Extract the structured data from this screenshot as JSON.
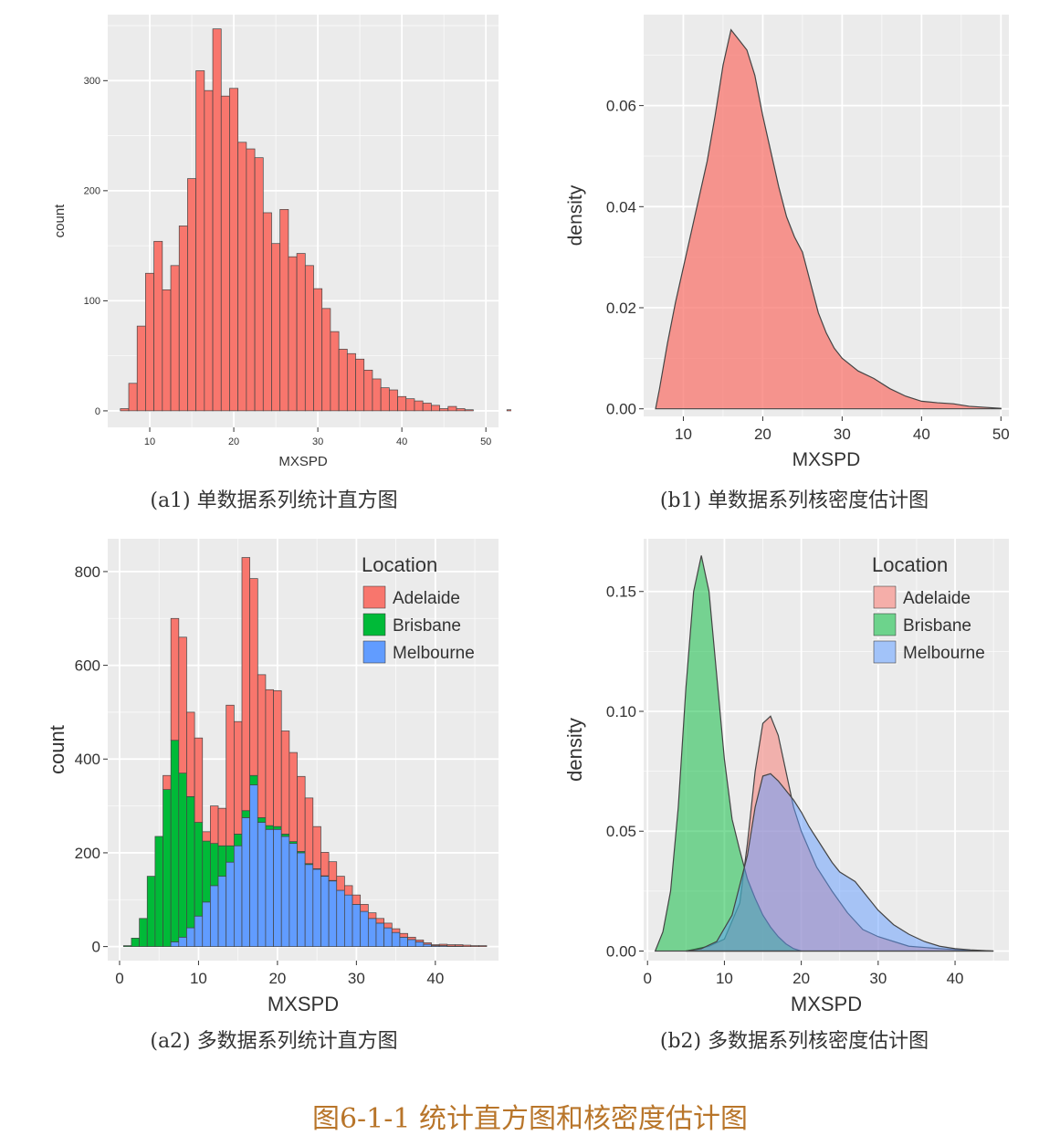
{
  "figure_title": "图6-1-1 统计直方图和核密度估计图",
  "captions": {
    "a1": "(a1) 单数据系列统计直方图",
    "b1": "(b1) 单数据系列核密度估计图",
    "a2": "(a2) 多数据系列统计直方图",
    "b2": "(b2) 多数据系列核密度估计图"
  },
  "colors": {
    "panel_bg": "#ebebeb",
    "grid": "#ffffff",
    "Adelaide": "#f8766d",
    "Brisbane": "#00ba38",
    "Melbourne": "#619cff",
    "outline": "#444444"
  },
  "chart_data": [
    {
      "id": "a1",
      "type": "bar",
      "xlabel": "MXSPD",
      "ylabel": "count",
      "xlim": [
        5,
        51.5
      ],
      "ylim": [
        -15,
        360
      ],
      "xticks": [
        10,
        20,
        30,
        40,
        50
      ],
      "yticks": [
        0,
        100,
        200,
        300
      ],
      "grid": true,
      "bin_start": 6.5,
      "bin_width": 1,
      "values": [
        2,
        25,
        77,
        125,
        154,
        110,
        132,
        168,
        211,
        309,
        291,
        347,
        286,
        293,
        244,
        238,
        230,
        180,
        152,
        183,
        140,
        143,
        132,
        111,
        93,
        72,
        56,
        52,
        47,
        37,
        29,
        21,
        19,
        13,
        11,
        9,
        7,
        5,
        2,
        4,
        2,
        1,
        0,
        0,
        0,
        0,
        1
      ]
    },
    {
      "id": "b1",
      "type": "area",
      "xlabel": "MXSPD",
      "ylabel": "density",
      "xlim": [
        5,
        51
      ],
      "ylim": [
        -0.0015,
        0.078
      ],
      "xticks": [
        10,
        20,
        30,
        40,
        50
      ],
      "yticks": [
        0.0,
        0.02,
        0.04,
        0.06
      ],
      "ytick_labels": [
        "0.00",
        "0.02",
        "0.04",
        "0.06"
      ],
      "grid": true,
      "series": [
        {
          "x": [
            6.5,
            7,
            8,
            9,
            10,
            11,
            12,
            13,
            14,
            15,
            16,
            17,
            18,
            19,
            20,
            21,
            22,
            23,
            24,
            25,
            26,
            27,
            28,
            29,
            30,
            32,
            34,
            36,
            38,
            40,
            42,
            44,
            46,
            48,
            50
          ],
          "y": [
            0,
            0.004,
            0.013,
            0.021,
            0.028,
            0.035,
            0.042,
            0.049,
            0.058,
            0.068,
            0.075,
            0.073,
            0.071,
            0.066,
            0.058,
            0.051,
            0.044,
            0.038,
            0.034,
            0.031,
            0.025,
            0.019,
            0.015,
            0.012,
            0.01,
            0.0075,
            0.006,
            0.004,
            0.0025,
            0.0015,
            0.0012,
            0.001,
            0.0005,
            0.0003,
            0.0001
          ]
        }
      ]
    },
    {
      "id": "a2",
      "type": "bar",
      "stacked": true,
      "xlabel": "MXSPD",
      "ylabel": "count",
      "xlim": [
        -1.5,
        48
      ],
      "ylim": [
        -30,
        870
      ],
      "xticks": [
        0,
        10,
        20,
        30,
        40
      ],
      "yticks": [
        0,
        200,
        400,
        600,
        800
      ],
      "grid": true,
      "bin_start": 0.5,
      "bin_width": 1,
      "legend": {
        "title": "Location",
        "position": "top-right",
        "entries": [
          "Adelaide",
          "Brisbane",
          "Melbourne"
        ]
      },
      "series": [
        {
          "name": "Melbourne",
          "values": [
            0,
            0,
            0,
            0,
            0,
            0,
            10,
            20,
            40,
            65,
            95,
            130,
            150,
            180,
            215,
            275,
            345,
            265,
            250,
            250,
            235,
            220,
            200,
            175,
            165,
            150,
            140,
            120,
            110,
            90,
            75,
            60,
            50,
            40,
            30,
            20,
            15,
            10,
            5,
            2,
            2,
            1,
            1,
            0,
            0,
            0
          ]
        },
        {
          "name": "Brisbane",
          "values": [
            2,
            18,
            60,
            150,
            235,
            335,
            430,
            350,
            280,
            200,
            130,
            90,
            65,
            35,
            25,
            15,
            20,
            10,
            8,
            6,
            5,
            4,
            3,
            2,
            1,
            1,
            1,
            0,
            0,
            0,
            0,
            0,
            0,
            0,
            0,
            0,
            0,
            0,
            0,
            0,
            0,
            0,
            0,
            0,
            0,
            0
          ]
        },
        {
          "name": "Adelaide",
          "values": [
            0,
            0,
            0,
            0,
            0,
            30,
            260,
            290,
            180,
            180,
            20,
            80,
            80,
            300,
            240,
            540,
            420,
            305,
            290,
            290,
            220,
            190,
            160,
            140,
            90,
            50,
            40,
            30,
            20,
            20,
            15,
            12,
            10,
            10,
            8,
            8,
            5,
            4,
            3,
            2,
            3,
            3,
            3,
            3,
            2,
            2
          ]
        }
      ]
    },
    {
      "id": "b2",
      "type": "area",
      "xlabel": "MXSPD",
      "ylabel": "density",
      "xlim": [
        -0.5,
        47
      ],
      "ylim": [
        -0.004,
        0.172
      ],
      "xticks": [
        0,
        10,
        20,
        30,
        40
      ],
      "yticks": [
        0.0,
        0.05,
        0.1,
        0.15
      ],
      "ytick_labels": [
        "0.00",
        "0.05",
        "0.10",
        "0.15"
      ],
      "grid": true,
      "legend": {
        "title": "Location",
        "position": "top-right",
        "entries": [
          "Adelaide",
          "Brisbane",
          "Melbourne"
        ]
      },
      "series": [
        {
          "name": "Adelaide",
          "x": [
            5,
            8,
            10,
            12,
            13,
            14,
            15,
            16,
            17,
            18,
            19,
            20,
            22,
            24,
            26,
            28,
            30,
            32,
            34,
            36,
            38,
            40,
            42,
            44,
            45
          ],
          "y": [
            0,
            0.002,
            0.005,
            0.02,
            0.045,
            0.075,
            0.095,
            0.098,
            0.09,
            0.075,
            0.06,
            0.05,
            0.035,
            0.025,
            0.016,
            0.009,
            0.006,
            0.004,
            0.002,
            0.0015,
            0.001,
            0.0006,
            0.0003,
            0.0001,
            0
          ]
        },
        {
          "name": "Brisbane",
          "x": [
            1,
            2,
            3,
            4,
            5,
            6,
            7,
            8,
            9,
            10,
            11,
            12,
            13,
            14,
            15,
            16,
            17,
            18,
            19,
            20
          ],
          "y": [
            0,
            0.008,
            0.025,
            0.06,
            0.11,
            0.15,
            0.165,
            0.15,
            0.115,
            0.08,
            0.055,
            0.042,
            0.03,
            0.022,
            0.015,
            0.01,
            0.006,
            0.003,
            0.001,
            0
          ]
        },
        {
          "name": "Melbourne",
          "x": [
            5,
            7,
            9,
            11,
            13,
            14,
            15,
            16,
            17,
            18,
            19,
            20,
            21,
            22,
            23,
            24,
            25,
            26,
            27,
            28,
            30,
            32,
            34,
            36,
            38,
            40,
            42,
            45
          ],
          "y": [
            0,
            0.001,
            0.004,
            0.015,
            0.04,
            0.06,
            0.073,
            0.074,
            0.071,
            0.067,
            0.063,
            0.058,
            0.052,
            0.047,
            0.042,
            0.037,
            0.033,
            0.031,
            0.029,
            0.025,
            0.017,
            0.011,
            0.007,
            0.004,
            0.002,
            0.001,
            0.0005,
            0
          ]
        }
      ]
    }
  ]
}
